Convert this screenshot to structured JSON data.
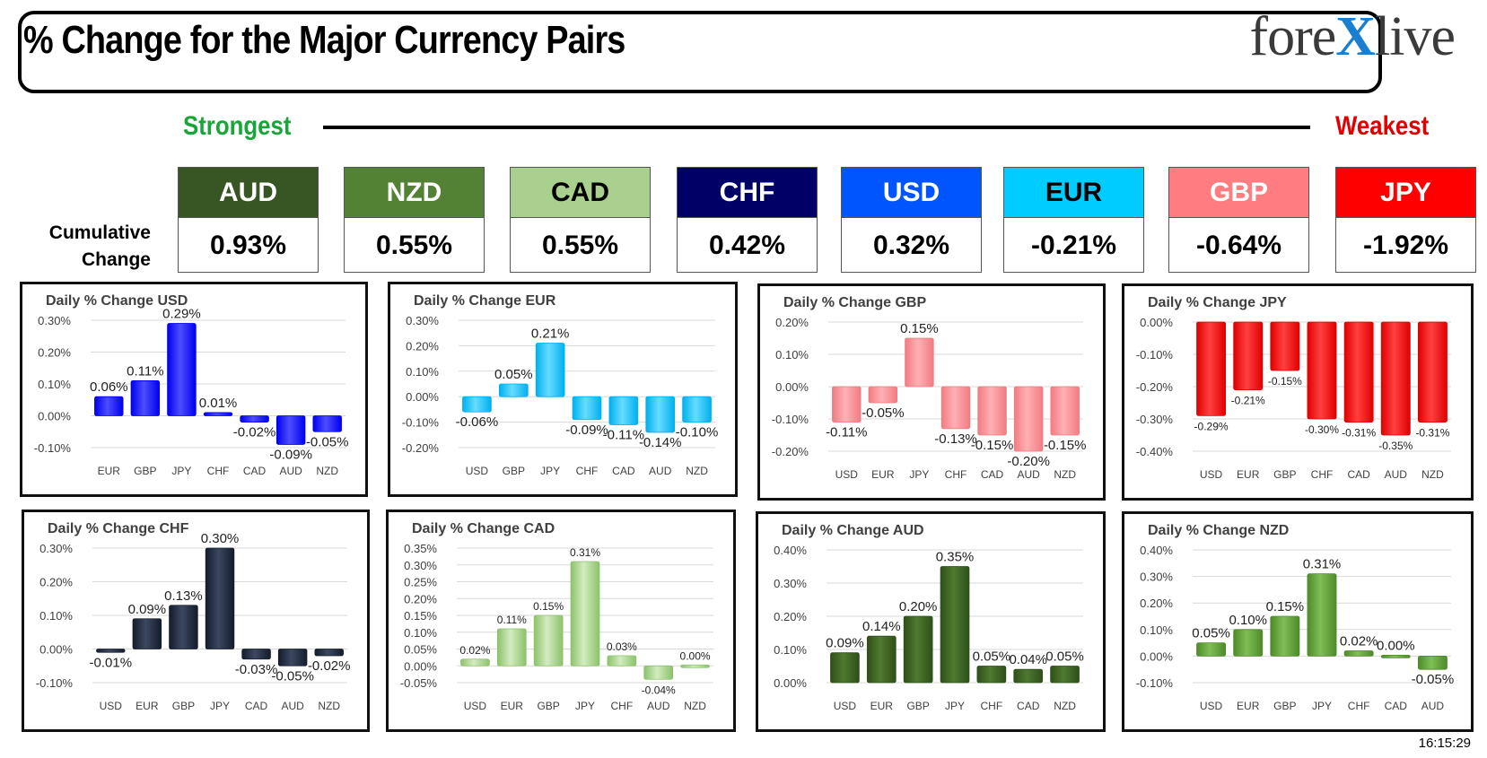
{
  "header": {
    "title": "% Change for the Major Currency Pairs",
    "logo_left": "fore",
    "logo_x": "X",
    "logo_right": "live"
  },
  "ranking": {
    "strongest_label": "Strongest",
    "weakest_label": "Weakest",
    "cumulative_label_line1": "Cumulative",
    "cumulative_label_line2": "Change",
    "currencies": [
      {
        "name": "AUD",
        "value": "0.93%",
        "bg": "#375623",
        "fg": "#ffffff"
      },
      {
        "name": "NZD",
        "value": "0.55%",
        "bg": "#548235",
        "fg": "#ffffff"
      },
      {
        "name": "CAD",
        "value": "0.55%",
        "bg": "#a9d08e",
        "fg": "#000000"
      },
      {
        "name": "CHF",
        "value": "0.42%",
        "bg": "#000066",
        "fg": "#ffffff"
      },
      {
        "name": "USD",
        "value": "0.32%",
        "bg": "#0055ff",
        "fg": "#ffffff"
      },
      {
        "name": "EUR",
        "value": "-0.21%",
        "bg": "#00ccff",
        "fg": "#000000"
      },
      {
        "name": "GBP",
        "value": "-0.64%",
        "bg": "#ff7c80",
        "fg": "#ffffff"
      },
      {
        "name": "JPY",
        "value": "-1.92%",
        "bg": "#ff0000",
        "fg": "#ffffff"
      }
    ]
  },
  "timestamp": "16:15:29",
  "chart_data": [
    {
      "type": "bar",
      "title": "Daily % Change USD",
      "categories": [
        "EUR",
        "GBP",
        "JPY",
        "CHF",
        "CAD",
        "AUD",
        "NZD"
      ],
      "values": [
        0.06,
        0.11,
        0.29,
        0.01,
        -0.02,
        -0.09,
        -0.05
      ],
      "labels": [
        "0.06%",
        "0.11%",
        "0.29%",
        "0.01%",
        "-0.02%",
        "-0.09%",
        "-0.05%"
      ],
      "ylim": [
        -0.1,
        0.3
      ],
      "ticks": [
        0.3,
        0.2,
        0.1,
        0.0,
        -0.1
      ],
      "tick_labels": [
        "0.30%",
        "0.20%",
        "0.10%",
        "0.00%",
        "-0.10%"
      ],
      "color": "#0000ee",
      "color_light": "#4d4dff"
    },
    {
      "type": "bar",
      "title": "Daily % Change EUR",
      "categories": [
        "USD",
        "GBP",
        "JPY",
        "CHF",
        "CAD",
        "AUD",
        "NZD"
      ],
      "values": [
        -0.06,
        0.05,
        0.21,
        -0.09,
        -0.11,
        -0.14,
        -0.1
      ],
      "labels": [
        "-0.06%",
        "0.05%",
        "0.21%",
        "-0.09%",
        "-0.11%",
        "-0.14%",
        "-0.10%"
      ],
      "ylim": [
        -0.2,
        0.3
      ],
      "ticks": [
        0.3,
        0.2,
        0.1,
        0.0,
        -0.1,
        -0.2
      ],
      "tick_labels": [
        "0.30%",
        "0.20%",
        "0.10%",
        "0.00%",
        "-0.10%",
        "-0.20%"
      ],
      "color": "#00b0f0",
      "color_light": "#66dcff"
    },
    {
      "type": "bar",
      "title": "Daily % Change GBP",
      "categories": [
        "USD",
        "EUR",
        "JPY",
        "CHF",
        "CAD",
        "AUD",
        "NZD"
      ],
      "values": [
        -0.11,
        -0.05,
        0.15,
        -0.13,
        -0.15,
        -0.2,
        -0.15
      ],
      "labels": [
        "-0.11%",
        "-0.05%",
        "0.15%",
        "-0.13%",
        "-0.15%",
        "-0.20%",
        "-0.15%"
      ],
      "ylim": [
        -0.2,
        0.2
      ],
      "ticks": [
        0.2,
        0.1,
        0.0,
        -0.1,
        -0.2
      ],
      "tick_labels": [
        "0.20%",
        "0.10%",
        "0.00%",
        "-0.10%",
        "-0.20%"
      ],
      "color": "#f07c82",
      "color_light": "#ffb0b4"
    },
    {
      "type": "bar",
      "title": "Daily % Change JPY",
      "categories": [
        "USD",
        "EUR",
        "GBP",
        "CHF",
        "CAD",
        "AUD",
        "NZD"
      ],
      "values": [
        -0.29,
        -0.21,
        -0.15,
        -0.3,
        -0.31,
        -0.35,
        -0.31
      ],
      "labels": [
        "-0.29%",
        "-0.21%",
        "-0.15%",
        "-0.30%",
        "-0.31%",
        "-0.35%",
        "-0.31%"
      ],
      "ylim": [
        -0.4,
        0.0
      ],
      "ticks": [
        0.0,
        -0.1,
        -0.2,
        -0.3,
        -0.4
      ],
      "tick_labels": [
        "0.00%",
        "-0.10%",
        "-0.20%",
        "-0.30%",
        "-0.40%"
      ],
      "color": "#e00000",
      "color_light": "#ff4040"
    },
    {
      "type": "bar",
      "title": "Daily % Change CHF",
      "categories": [
        "USD",
        "EUR",
        "GBP",
        "JPY",
        "CAD",
        "AUD",
        "NZD"
      ],
      "values": [
        -0.01,
        0.09,
        0.13,
        0.3,
        -0.03,
        -0.05,
        -0.02
      ],
      "labels": [
        "-0.01%",
        "0.09%",
        "0.13%",
        "0.30%",
        "-0.03%",
        "-0.05%",
        "-0.02%"
      ],
      "ylim": [
        -0.1,
        0.3
      ],
      "ticks": [
        0.3,
        0.2,
        0.1,
        0.0,
        -0.1
      ],
      "tick_labels": [
        "0.30%",
        "0.20%",
        "0.10%",
        "0.00%",
        "-0.10%"
      ],
      "color": "#141c2c",
      "color_light": "#3c4860"
    },
    {
      "type": "bar",
      "title": "Daily % Change CAD",
      "categories": [
        "USD",
        "EUR",
        "GBP",
        "JPY",
        "CHF",
        "AUD",
        "NZD"
      ],
      "values": [
        0.02,
        0.11,
        0.15,
        0.31,
        0.03,
        -0.04,
        0.0
      ],
      "labels": [
        "0.02%",
        "0.11%",
        "0.15%",
        "0.31%",
        "0.03%",
        "-0.04%",
        "0.00%"
      ],
      "ylim": [
        -0.05,
        0.35
      ],
      "ticks": [
        0.35,
        0.3,
        0.25,
        0.2,
        0.15,
        0.1,
        0.05,
        0.0,
        -0.05
      ],
      "tick_labels": [
        "0.35%",
        "0.30%",
        "0.25%",
        "0.20%",
        "0.15%",
        "0.10%",
        "0.05%",
        "0.00%",
        "-0.05%"
      ],
      "color": "#8cc26a",
      "color_light": "#d3ecc0"
    },
    {
      "type": "bar",
      "title": "Daily % Change AUD",
      "categories": [
        "USD",
        "EUR",
        "GBP",
        "JPY",
        "CHF",
        "CAD",
        "NZD"
      ],
      "values": [
        0.09,
        0.14,
        0.2,
        0.35,
        0.05,
        0.04,
        0.05
      ],
      "labels": [
        "0.09%",
        "0.14%",
        "0.20%",
        "0.35%",
        "0.05%",
        "0.04%",
        "0.05%"
      ],
      "ylim": [
        0.0,
        0.4
      ],
      "ticks": [
        0.4,
        0.3,
        0.2,
        0.1,
        0.0
      ],
      "tick_labels": [
        "0.40%",
        "0.30%",
        "0.20%",
        "0.10%",
        "0.00%"
      ],
      "color": "#2f4f1a",
      "color_light": "#4f7a30"
    },
    {
      "type": "bar",
      "title": "Daily % Change NZD",
      "categories": [
        "USD",
        "EUR",
        "GBP",
        "JPY",
        "CHF",
        "CAD",
        "AUD"
      ],
      "values": [
        0.05,
        0.1,
        0.15,
        0.31,
        0.02,
        0.0,
        -0.05
      ],
      "labels": [
        "0.05%",
        "0.10%",
        "0.15%",
        "0.31%",
        "0.02%",
        "0.00%",
        "-0.05%"
      ],
      "ylim": [
        -0.1,
        0.4
      ],
      "ticks": [
        0.4,
        0.3,
        0.2,
        0.1,
        0.0,
        -0.1
      ],
      "tick_labels": [
        "0.40%",
        "0.30%",
        "0.20%",
        "0.10%",
        "0.00%",
        "-0.10%"
      ],
      "color": "#4e8a2a",
      "color_light": "#7fbf55"
    }
  ]
}
